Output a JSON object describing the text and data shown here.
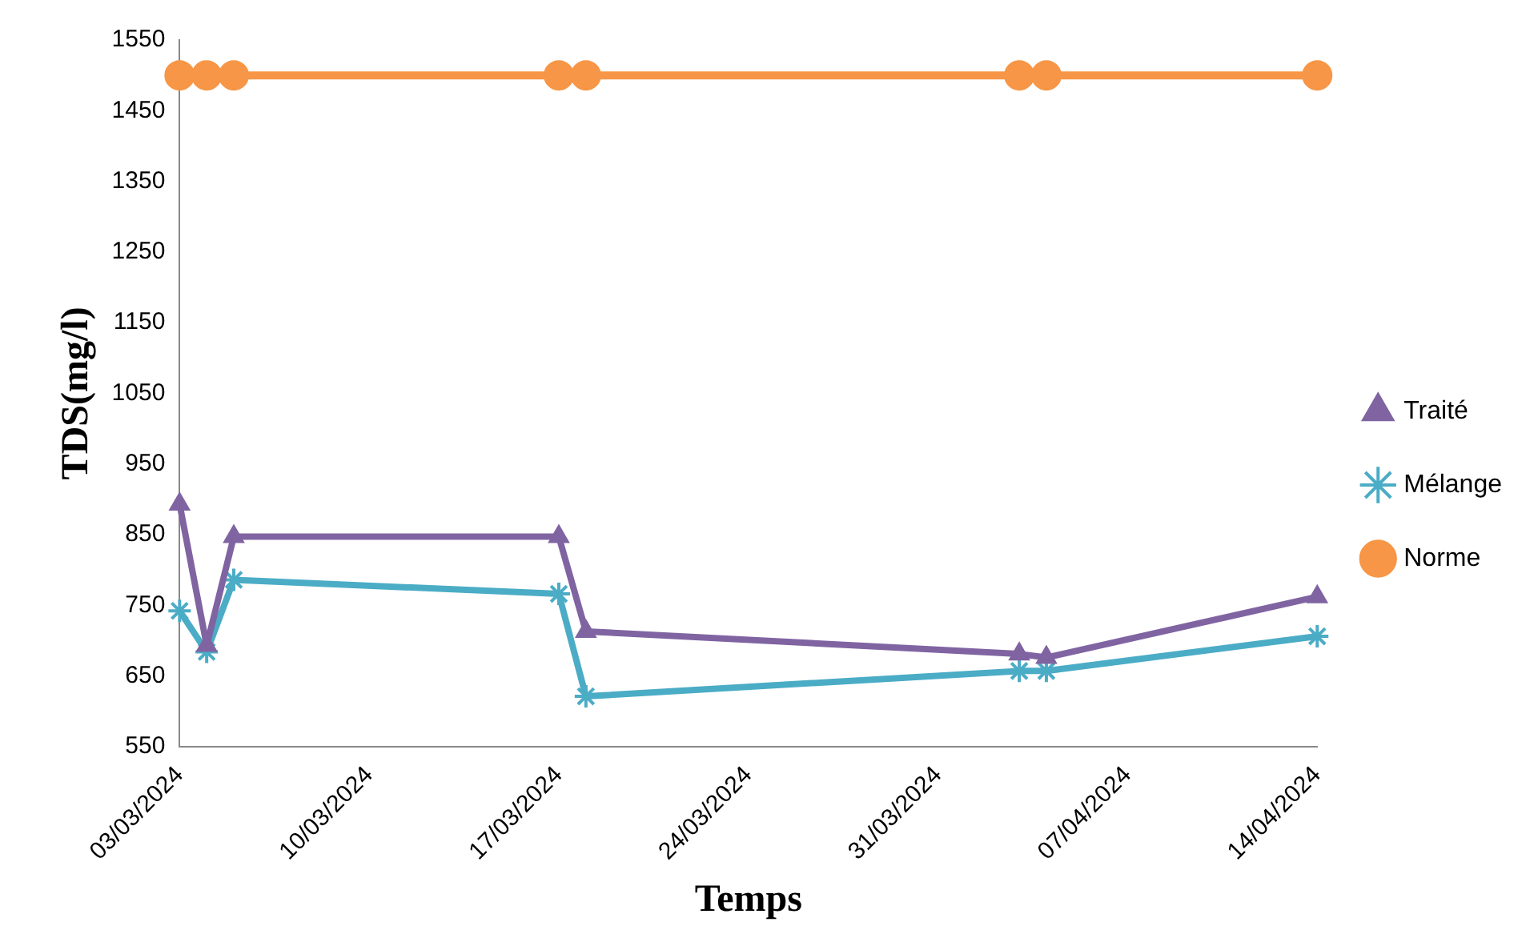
{
  "chart_data": {
    "type": "line",
    "xlabel": "Temps",
    "ylabel": "TDS(mg/l)",
    "xlim": [
      "2024-03-03",
      "2024-04-14"
    ],
    "xticks": [
      {
        "value": "2024-03-03",
        "label": "03/03/2024"
      },
      {
        "value": "2024-03-10",
        "label": "10/03/2024"
      },
      {
        "value": "2024-03-17",
        "label": "17/03/2024"
      },
      {
        "value": "2024-03-24",
        "label": "24/03/2024"
      },
      {
        "value": "2024-03-31",
        "label": "31/03/2024"
      },
      {
        "value": "2024-04-07",
        "label": "07/04/2024"
      },
      {
        "value": "2024-04-14",
        "label": "14/04/2024"
      }
    ],
    "ylim": [
      550,
      1550
    ],
    "yticks": [
      550,
      650,
      750,
      850,
      950,
      1050,
      1150,
      1250,
      1350,
      1450,
      1550
    ],
    "x": [
      "2024-03-03",
      "2024-03-04",
      "2024-03-05",
      "2024-03-17",
      "2024-03-18",
      "2024-04-03",
      "2024-04-04",
      "2024-04-14"
    ],
    "series": [
      {
        "name": "Traité",
        "color": "#8064a2",
        "marker": "triangle",
        "values": [
          893,
          693,
          847,
          847,
          713,
          681,
          676,
          762
        ]
      },
      {
        "name": "Mélange",
        "color": "#4bacc6",
        "marker": "cross",
        "values": [
          742,
          684,
          786,
          766,
          621,
          657,
          657,
          706
        ]
      },
      {
        "name": "Norme",
        "color": "#f79646",
        "marker": "circle",
        "values": [
          1500,
          1500,
          1500,
          1500,
          1500,
          1500,
          1500,
          1500
        ]
      }
    ],
    "grid": false,
    "legend": "right",
    "line_style": "solid"
  }
}
